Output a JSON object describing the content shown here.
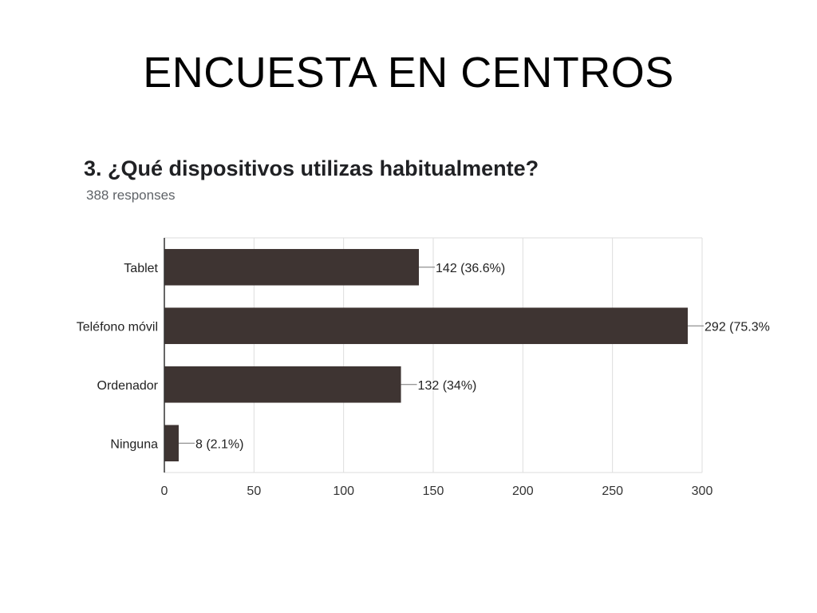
{
  "slide": {
    "title": "ENCUESTA EN CENTROS"
  },
  "chart_data": {
    "type": "bar",
    "orientation": "horizontal",
    "title": "3. ¿Qué dispositivos utilizas habitualmente?",
    "subtitle": "388 responses",
    "categories": [
      "Tablet",
      "Teléfono móvil",
      "Ordenador",
      "Ninguna"
    ],
    "values": [
      142,
      292,
      132,
      8
    ],
    "value_labels": [
      "142 (36.6%)",
      "292 (75.3%",
      "132 (34%)",
      "8 (2.1%)"
    ],
    "xlim": [
      0,
      300
    ],
    "x_ticks": [
      0,
      50,
      100,
      150,
      200,
      250,
      300
    ],
    "grid": true,
    "bar_color": "#3e3432",
    "grid_color": "#dddddd"
  }
}
